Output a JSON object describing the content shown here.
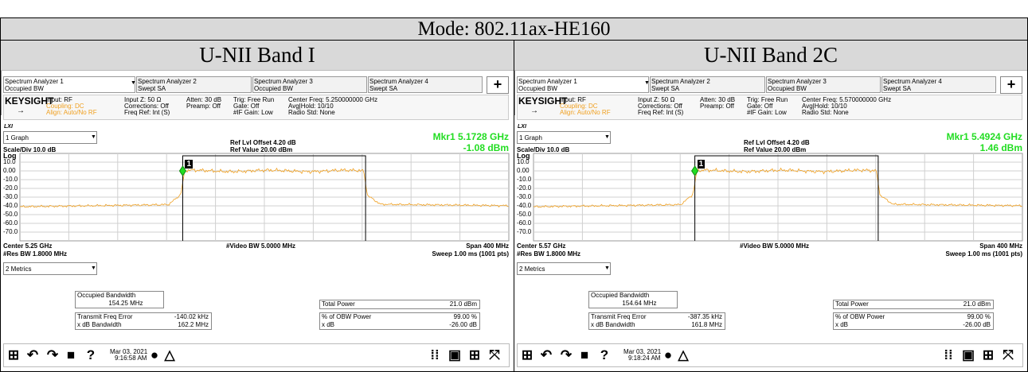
{
  "header": {
    "title": "Mode: 802.11ax-HE160"
  },
  "panels": [
    {
      "band": "U-NII Band I",
      "tabs": [
        [
          "Spectrum Analyzer 1",
          "Occupied BW"
        ],
        [
          "Spectrum Analyzer 2",
          "Swept SA"
        ],
        [
          "Spectrum Analyzer 3",
          "Occupied BW"
        ],
        [
          "Spectrum Analyzer 4",
          "Swept SA"
        ]
      ],
      "add_tab": "+",
      "brand": "KEYSIGHT",
      "info": [
        [
          "Input: RF",
          "Coupling: DC",
          "Align: Auto/No RF"
        ],
        [
          "Input Z: 50 Ω",
          "Corrections: Off",
          "Freq Ref: Int (S)"
        ],
        [
          "Atten: 30 dB",
          "Preamp: Off"
        ],
        [
          "Trig: Free Run",
          "Gate: Off",
          "#IF Gain: Low"
        ],
        [
          "Center Freq: 5.250000000 GHz",
          "Avg|Hold: 10/10",
          "Radio Std: None"
        ]
      ],
      "lxi": "LXI",
      "graph_select": "1 Graph",
      "ref_offset": "Ref Lvl Offset 4.20 dB",
      "marker_freq": "Mkr1  5.1728 GHz",
      "scale": "Scale/Div 10.0 dB",
      "ref_value": "Ref Value 20.00 dBm",
      "marker_level": "-1.08 dBm",
      "y_labels": [
        "Log",
        "10.0",
        "0.00",
        "-10.0",
        "-20.0",
        "-30.0",
        "-40.0",
        "-50.0",
        "-60.0",
        "-70.0"
      ],
      "marker_tag": "1",
      "center": "Center 5.25 GHz",
      "video_bw": "#Video BW 5.0000 MHz",
      "span": "Span 400 MHz",
      "res_bw": "#Res BW 1.8000 MHz",
      "sweep": "Sweep 1.00 ms (1001 pts)",
      "metrics_select": "2 Metrics",
      "obw": {
        "label": "Occupied Bandwidth",
        "value": "154.25 MHz"
      },
      "left_rows": [
        [
          "Transmit Freq Error",
          "-140.02 kHz"
        ],
        [
          "x dB Bandwidth",
          "162.2 MHz"
        ]
      ],
      "right_rows": [
        [
          "Total Power",
          "21.0 dBm"
        ],
        [
          "% of OBW Power",
          "99.00 %"
        ],
        [
          "x dB",
          "-26.00 dB"
        ]
      ],
      "date": "Mar 03, 2021",
      "time": "9:16:58 AM"
    },
    {
      "band": "U-NII Band 2C",
      "tabs": [
        [
          "Spectrum Analyzer 1",
          "Occupied BW"
        ],
        [
          "Spectrum Analyzer 2",
          "Swept SA"
        ],
        [
          "Spectrum Analyzer 3",
          "Occupied BW"
        ],
        [
          "Spectrum Analyzer 4",
          "Swept SA"
        ]
      ],
      "add_tab": "+",
      "brand": "KEYSIGHT",
      "info": [
        [
          "Input: RF",
          "Coupling: DC",
          "Align: Auto/No RF"
        ],
        [
          "Input Z: 50 Ω",
          "Corrections: Off",
          "Freq Ref: Int (S)"
        ],
        [
          "Atten: 30 dB",
          "Preamp: Off"
        ],
        [
          "Trig: Free Run",
          "Gate: Off",
          "#IF Gain: Low"
        ],
        [
          "Center Freq: 5.570000000 GHz",
          "Avg|Hold: 10/10",
          "Radio Std: None"
        ]
      ],
      "lxi": "LXI",
      "graph_select": "1 Graph",
      "ref_offset": "Ref Lvl Offset 4.20 dB",
      "marker_freq": "Mkr1  5.4924 GHz",
      "scale": "Scale/Div 10.0 dB",
      "ref_value": "Ref Value 20.00 dBm",
      "marker_level": "1.46 dBm",
      "y_labels": [
        "Log",
        "10.0",
        "0.00",
        "-10.0",
        "-20.0",
        "-30.0",
        "-40.0",
        "-50.0",
        "-60.0",
        "-70.0"
      ],
      "marker_tag": "1",
      "center": "Center 5.57 GHz",
      "video_bw": "#Video BW 5.0000 MHz",
      "span": "Span 400 MHz",
      "res_bw": "#Res BW 1.8000 MHz",
      "sweep": "Sweep 1.00 ms (1001 pts)",
      "metrics_select": "2 Metrics",
      "obw": {
        "label": "Occupied Bandwidth",
        "value": "154.64 MHz"
      },
      "left_rows": [
        [
          "Transmit Freq Error",
          "-387.35 kHz"
        ],
        [
          "x dB Bandwidth",
          "161.8 MHz"
        ]
      ],
      "right_rows": [
        [
          "Total Power",
          "21.0 dBm"
        ],
        [
          "% of OBW Power",
          "99.00 %"
        ],
        [
          "x dB",
          "-26.00 dB"
        ]
      ],
      "date": "Mar 03, 2021",
      "time": "9:18:24 AM"
    }
  ]
}
